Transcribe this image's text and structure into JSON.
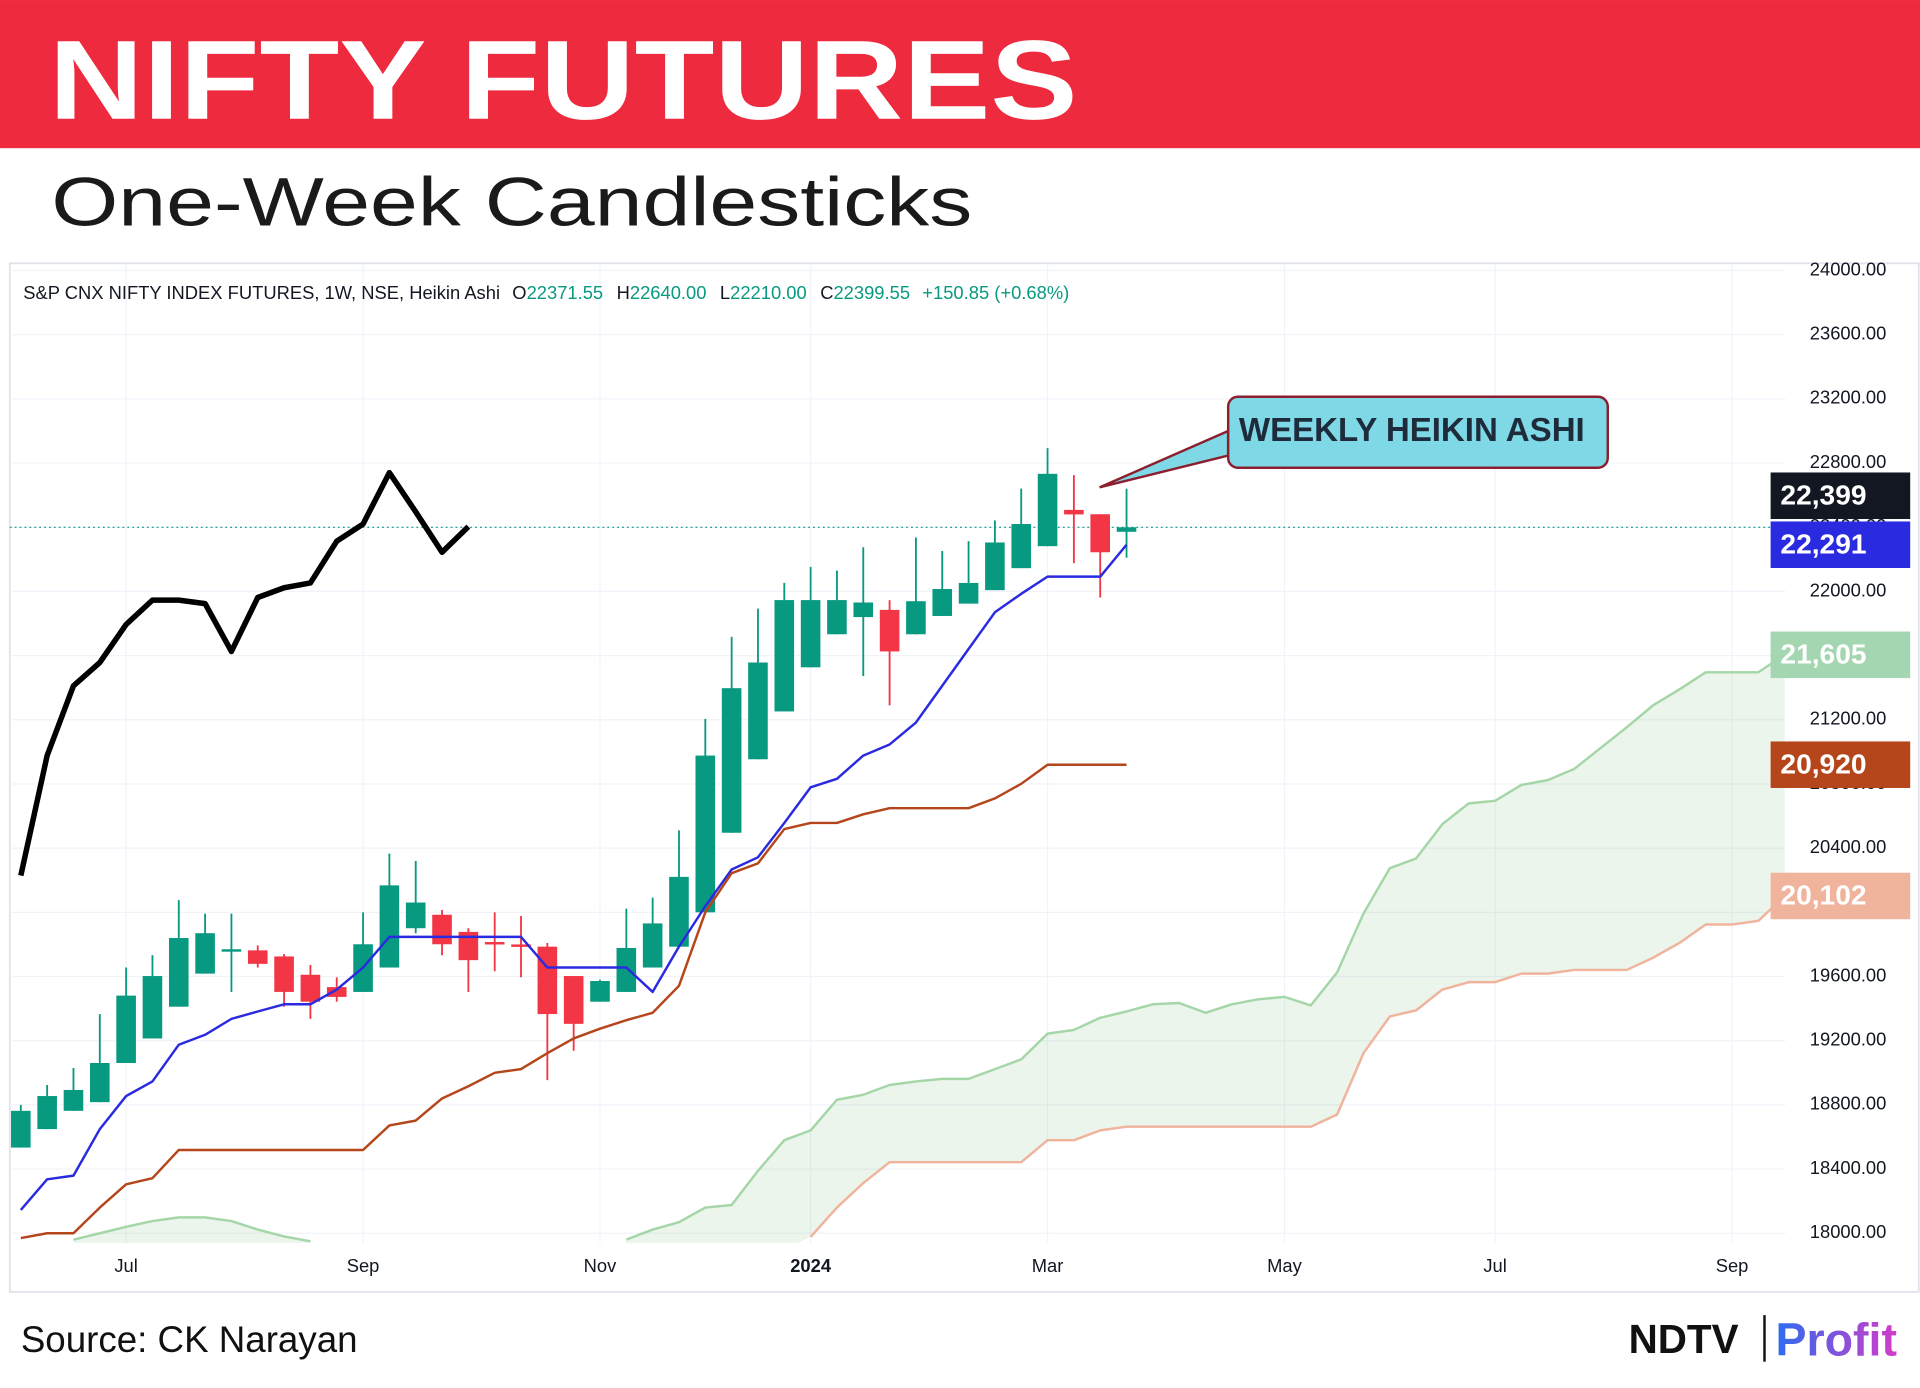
{
  "chart_data": {
    "type": "candlestick",
    "title": "NIFTY FUTURES",
    "subtitle": "One-Week Candlesticks",
    "info_line": {
      "name": "S&P CNX NIFTY INDEX FUTURES, 1W, NSE, Heikin Ashi",
      "fields": [
        {
          "key": "O",
          "value": "22371.55"
        },
        {
          "key": "H",
          "value": "22640.00"
        },
        {
          "key": "L",
          "value": "22210.00"
        },
        {
          "key": "C",
          "value": "22399.55"
        }
      ],
      "change": "+150.85 (+0.68%)"
    },
    "annotation": "WEEKLY HEIKIN ASHI",
    "source": "Source: CK Narayan",
    "logo": [
      "NDTV",
      "Profit"
    ],
    "categories": [
      null,
      null,
      null,
      null,
      "Jul",
      null,
      null,
      null,
      null,
      null,
      null,
      null,
      null,
      "Sep",
      null,
      null,
      null,
      null,
      null,
      null,
      null,
      null,
      "Nov",
      null,
      null,
      null,
      null,
      null,
      null,
      null,
      "2024",
      null,
      null,
      null,
      null,
      null,
      null,
      null,
      null,
      "Mar",
      null,
      null,
      null,
      null,
      null,
      null,
      null,
      null,
      "May",
      null,
      null,
      null,
      null,
      null,
      null,
      null,
      "Jul",
      null,
      null,
      null,
      null,
      null,
      null,
      null,
      null,
      "Sep",
      null,
      null
    ],
    "open": [
      18534,
      18649,
      18763,
      18817,
      19061,
      19214,
      19412,
      19618,
      19755,
      19763,
      19725,
      19611,
      19534,
      19504,
      19656,
      19901,
      19985,
      19878,
      19815,
      19800,
      19786,
      19603,
      19443,
      19504,
      19656,
      19786,
      20000,
      20496,
      20954,
      21252,
      21527,
      21733,
      21840,
      21885,
      21733,
      21847,
      21924,
      22008,
      22145,
      22282,
      22508,
      22481,
      22371.55,
      null,
      null,
      null,
      null,
      null,
      null,
      null,
      null,
      null,
      null,
      null,
      null,
      null,
      null,
      null,
      null,
      null,
      null,
      null,
      null,
      null,
      null,
      null,
      null,
      null
    ],
    "high": [
      18800,
      18924,
      19030,
      19366,
      19656,
      19733,
      20076,
      19992,
      19992,
      19794,
      19740,
      19672,
      19595,
      20000,
      20366,
      20320,
      20015,
      19901,
      20000,
      19977,
      19809,
      19603,
      19580,
      20023,
      20092,
      20511,
      21206,
      21717,
      21893,
      22053,
      22153,
      22130,
      22275,
      21946,
      22336,
      22252,
      22313,
      22443,
      22641,
      22893,
      22725,
      22481,
      22640,
      null,
      null,
      null,
      null,
      null,
      null,
      null,
      null,
      null,
      null,
      null,
      null,
      null,
      null,
      null,
      null,
      null,
      null,
      null,
      null,
      null,
      null,
      null,
      null,
      null
    ],
    "low": [
      18534,
      18649,
      18763,
      18817,
      19061,
      19214,
      19412,
      19618,
      19504,
      19656,
      19412,
      19336,
      19443,
      19504,
      19656,
      19870,
      19733,
      19504,
      19633,
      19595,
      18954,
      19137,
      19443,
      19504,
      19656,
      19786,
      20000,
      20496,
      20954,
      21252,
      21527,
      21733,
      21473,
      21290,
      21733,
      21847,
      21924,
      22008,
      22145,
      22282,
      22176,
      21962,
      22210,
      null,
      null,
      null,
      null,
      null,
      null,
      null,
      null,
      null,
      null,
      null,
      null,
      null,
      null,
      null,
      null,
      null,
      null,
      null,
      null,
      null,
      null,
      null,
      null,
      null
    ],
    "close": [
      18763,
      18855,
      18893,
      19061,
      19481,
      19603,
      19840,
      19870,
      19770,
      19679,
      19504,
      19443,
      19473,
      19801,
      20168,
      20061,
      19801,
      19702,
      19800,
      19785,
      19366,
      19305,
      19572,
      19778,
      19931,
      20221,
      20977,
      21397,
      21557,
      21946,
      21946,
      21946,
      21931,
      21626,
      21939,
      22015,
      22053,
      22305,
      22420,
      22733,
      22480,
      22244,
      22399.55,
      null,
      null,
      null,
      null,
      null,
      null,
      null,
      null,
      null,
      null,
      null,
      null,
      null,
      null,
      null,
      null,
      null,
      null,
      null,
      null,
      null,
      null,
      null,
      null,
      null
    ],
    "up_color": "#089981",
    "down_color": "#f23645",
    "lines": [
      {
        "color": "#000000",
        "values": [
          20229,
          20977,
          21412,
          21557,
          21794,
          21946,
          21946,
          21924,
          21626,
          21962,
          22023,
          22053,
          22313,
          22420,
          22740,
          22496,
          22244,
          22404,
          null,
          null,
          null,
          null,
          null,
          null,
          null,
          null,
          null,
          null,
          null,
          null,
          null,
          null,
          null,
          null,
          null,
          null,
          null,
          null,
          null,
          null,
          null,
          null,
          null,
          null,
          null,
          null,
          null,
          null,
          null,
          null,
          null,
          null,
          null,
          null,
          null,
          null,
          null,
          null,
          null,
          null,
          null,
          null,
          null,
          null,
          null,
          null,
          null,
          null
        ]
      },
      {
        "color": "#2a2ae0",
        "values": [
          18145,
          18336,
          18359,
          18649,
          18855,
          18946,
          19175,
          19237,
          19336,
          19382,
          19427,
          19427,
          19519,
          19656,
          19847,
          19847,
          19847,
          19847,
          19847,
          19847,
          19656,
          19656,
          19656,
          19656,
          19504,
          19786,
          20038,
          20267,
          20343,
          20557,
          20779,
          20832,
          20977,
          21046,
          21183,
          21412,
          21641,
          21870,
          21985,
          22092,
          22092,
          22092,
          22291,
          null,
          null,
          null,
          null,
          null,
          null,
          null,
          null,
          null,
          null,
          null,
          null,
          null,
          null,
          null,
          null,
          null,
          null,
          null,
          null,
          null,
          null,
          null,
          null,
          null
        ]
      },
      {
        "color": "#b5461c",
        "values": [
          17970,
          18000,
          18000,
          18160,
          18305,
          18343,
          18519,
          18519,
          18519,
          18519,
          18519,
          18519,
          18519,
          18519,
          18672,
          18702,
          18840,
          18916,
          19000,
          19023,
          19122,
          19214,
          19275,
          19328,
          19374,
          19542,
          20000,
          20244,
          20305,
          20519,
          20557,
          20557,
          20611,
          20649,
          20649,
          20649,
          20649,
          20710,
          20801,
          20920,
          20920,
          20920,
          20920,
          null,
          null,
          null,
          null,
          null,
          null,
          null,
          null,
          null,
          null,
          null,
          null,
          null,
          null,
          null,
          null,
          null,
          null,
          null,
          null,
          null,
          null,
          null,
          null,
          null
        ]
      }
    ],
    "cloud": {
      "fill": "rgba(67,160,71,0.10)",
      "span_a": {
        "color": "#a5d6a7",
        "values": [
          null,
          null,
          17960,
          18000,
          18040,
          18076,
          18099,
          18099,
          18076,
          18023,
          17980,
          17950,
          null,
          null,
          null,
          null,
          null,
          null,
          null,
          null,
          null,
          null,
          null,
          17960,
          18023,
          18069,
          18160,
          18176,
          18389,
          18580,
          18641,
          18832,
          18863,
          18924,
          18946,
          18962,
          18962,
          19023,
          19084,
          19244,
          19267,
          19343,
          19382,
          19427,
          19435,
          19374,
          19427,
          19458,
          19473,
          19420,
          19626,
          19992,
          20275,
          20336,
          20550,
          20679,
          20695,
          20794,
          20824,
          20893,
          21023,
          21153,
          21290,
          21389,
          21496,
          21496,
          21496,
          21605
        ]
      },
      "span_b": {
        "color": "#f0b39c",
        "values": [
          null,
          null,
          null,
          null,
          null,
          null,
          null,
          null,
          null,
          null,
          null,
          null,
          null,
          null,
          null,
          null,
          null,
          null,
          null,
          null,
          null,
          null,
          null,
          null,
          null,
          null,
          null,
          null,
          null,
          null,
          17977,
          18160,
          18313,
          18443,
          18443,
          18443,
          18443,
          18443,
          18443,
          18580,
          18580,
          18641,
          18664,
          18664,
          18664,
          18664,
          18664,
          18664,
          18664,
          18664,
          18740,
          19122,
          19351,
          19389,
          19519,
          19565,
          19565,
          19618,
          19618,
          19641,
          19641,
          19641,
          19717,
          19809,
          19924,
          19924,
          19947,
          20102
        ]
      }
    },
    "price_labels": [
      {
        "value": 22399,
        "label": "22,399",
        "color": "#131722"
      },
      {
        "value": 22291,
        "label": "22,291",
        "color": "#2a2ae0"
      },
      {
        "value": 21605,
        "label": "21,605",
        "color": "#a5d6b2"
      },
      {
        "value": 20920,
        "label": "20,920",
        "color": "#b5461c"
      },
      {
        "value": 20102,
        "label": "20,102",
        "color": "#f0b39c"
      }
    ],
    "ylim": [
      17940,
      24045
    ],
    "yticks": [
      {
        "value": 18000,
        "label": "18000.00"
      },
      {
        "value": 18400,
        "label": "18400.00"
      },
      {
        "value": 18800,
        "label": "18800.00"
      },
      {
        "value": 19200,
        "label": "19200.00"
      },
      {
        "value": 19600,
        "label": "19600.00"
      },
      {
        "value": 20000,
        "label": "20000.00"
      },
      {
        "value": 20400,
        "label": "20400.00"
      },
      {
        "value": 20800,
        "label": "20800.00"
      },
      {
        "value": 21200,
        "label": "21200.00"
      },
      {
        "value": 21600,
        "label": "21600.00"
      },
      {
        "value": 22000,
        "label": "22000.00"
      },
      {
        "value": 22400,
        "label": "22400.00"
      },
      {
        "value": 22800,
        "label": "22800.00"
      },
      {
        "value": 23200,
        "label": "23200.00"
      },
      {
        "value": 23600,
        "label": "23600.00"
      },
      {
        "value": 24000,
        "label": "24000.00"
      }
    ],
    "grid": true
  }
}
